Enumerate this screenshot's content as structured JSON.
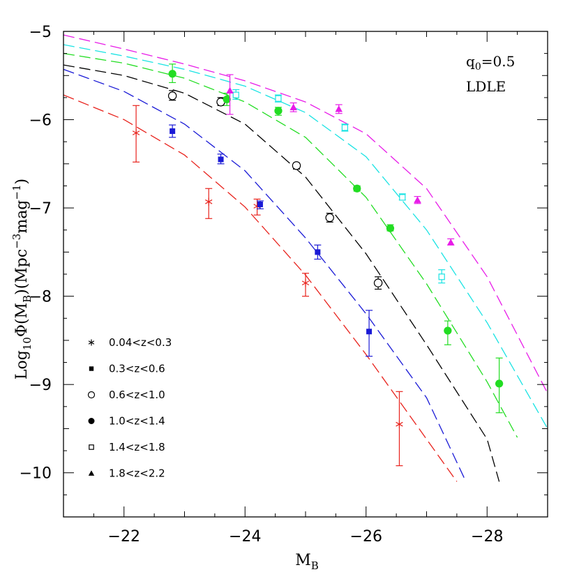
{
  "chart_data": {
    "type": "scatter",
    "title": "",
    "xlabel": {
      "main": "M",
      "sub": "B"
    },
    "ylabel": {
      "pre": "Log",
      "pre_sub": "10",
      "mid": "Φ(M",
      "mid_sub": "B",
      "post": ")(Mpc",
      "exp1": "−3",
      "post2": "mag",
      "exp2": "−1",
      "end": ")"
    },
    "xlim": [
      -21,
      -29
    ],
    "ylim": [
      -10.5,
      -5
    ],
    "x_ticks": [
      -22,
      -24,
      -26,
      -28
    ],
    "x_tick_labels": [
      "−22",
      "−24",
      "−26",
      "−28"
    ],
    "y_ticks": [
      -10,
      -9,
      -8,
      -7,
      -6,
      -5
    ],
    "y_tick_labels": [
      "−10",
      "−9",
      "−8",
      "−7",
      "−6",
      "−5"
    ],
    "grid": false,
    "legend_position": "bottom-left",
    "annotations": [
      {
        "main": "q",
        "sub": "0",
        "rest": "=0.5"
      },
      {
        "main": "LDLE"
      }
    ],
    "series": [
      {
        "name": "0.04<z<0.3",
        "marker": "asterisk",
        "color": "#e8221c",
        "points": [
          {
            "x": -22.2,
            "y": -6.15,
            "lo": -6.48,
            "hi": -5.84
          },
          {
            "x": -23.4,
            "y": -6.93,
            "lo": -7.12,
            "hi": -6.78
          },
          {
            "x": -24.2,
            "y": -6.98,
            "lo": -7.08,
            "hi": -6.9
          },
          {
            "x": -25.0,
            "y": -7.85,
            "lo": -8.0,
            "hi": -7.74
          },
          {
            "x": -26.55,
            "y": -9.45,
            "lo": -9.92,
            "hi": -9.08
          }
        ],
        "curve": [
          [
            -21,
            -5.72
          ],
          [
            -22,
            -6.0
          ],
          [
            -23,
            -6.4
          ],
          [
            -24,
            -6.99
          ],
          [
            -25,
            -7.76
          ],
          [
            -26,
            -8.66
          ],
          [
            -27,
            -9.62
          ],
          [
            -27.5,
            -10.1
          ]
        ]
      },
      {
        "name": "0.3<z<0.6",
        "marker": "square-filled",
        "color": "#1a1ad6",
        "points": [
          {
            "x": -22.8,
            "y": -6.13,
            "lo": -6.2,
            "hi": -6.06
          },
          {
            "x": -23.6,
            "y": -6.45,
            "lo": -6.5,
            "hi": -6.39
          },
          {
            "x": -24.25,
            "y": -6.96,
            "lo": -7.01,
            "hi": -6.92
          },
          {
            "x": -25.2,
            "y": -7.5,
            "lo": -7.58,
            "hi": -7.42
          },
          {
            "x": -26.05,
            "y": -8.4,
            "lo": -8.68,
            "hi": -8.16
          }
        ],
        "curve": [
          [
            -21,
            -5.43
          ],
          [
            -22,
            -5.68
          ],
          [
            -23,
            -6.05
          ],
          [
            -24,
            -6.58
          ],
          [
            -25,
            -7.34
          ],
          [
            -26,
            -8.2
          ],
          [
            -27,
            -9.15
          ],
          [
            -27.65,
            -10.1
          ]
        ]
      },
      {
        "name": "0.6<z<1.0",
        "marker": "circle-open",
        "color": "#000000",
        "points": [
          {
            "x": -22.8,
            "y": -5.73,
            "lo": -5.78,
            "hi": -5.67
          },
          {
            "x": -23.6,
            "y": -5.8,
            "lo": -5.84,
            "hi": -5.75
          },
          {
            "x": -24.85,
            "y": -6.52,
            "lo": -6.56,
            "hi": -6.49
          },
          {
            "x": -25.4,
            "y": -7.11,
            "lo": -7.16,
            "hi": -7.06
          },
          {
            "x": -26.2,
            "y": -7.85,
            "lo": -7.92,
            "hi": -7.78
          }
        ],
        "curve": [
          [
            -21,
            -5.38
          ],
          [
            -22,
            -5.5
          ],
          [
            -23,
            -5.7
          ],
          [
            -24,
            -6.05
          ],
          [
            -25,
            -6.65
          ],
          [
            -26,
            -7.52
          ],
          [
            -27,
            -8.55
          ],
          [
            -28,
            -9.62
          ],
          [
            -28.2,
            -10.1
          ]
        ]
      },
      {
        "name": "1.0<z<1.4",
        "marker": "circle-filled",
        "color": "#22dd22",
        "points": [
          {
            "x": -22.8,
            "y": -5.48,
            "lo": -5.58,
            "hi": -5.37
          },
          {
            "x": -23.7,
            "y": -5.77,
            "lo": -5.84,
            "hi": -5.7
          },
          {
            "x": -24.55,
            "y": -5.9,
            "lo": -5.95,
            "hi": -5.86
          },
          {
            "x": -25.85,
            "y": -6.78,
            "lo": -6.81,
            "hi": -6.75
          },
          {
            "x": -26.4,
            "y": -7.23,
            "lo": -7.26,
            "hi": -7.19
          },
          {
            "x": -27.35,
            "y": -8.39,
            "lo": -8.55,
            "hi": -8.28
          },
          {
            "x": -28.2,
            "y": -8.99,
            "lo": -9.32,
            "hi": -8.7
          }
        ],
        "curve": [
          [
            -21,
            -5.25
          ],
          [
            -22,
            -5.36
          ],
          [
            -23,
            -5.53
          ],
          [
            -24,
            -5.8
          ],
          [
            -25,
            -6.2
          ],
          [
            -26,
            -6.88
          ],
          [
            -27,
            -7.86
          ],
          [
            -28,
            -8.97
          ],
          [
            -28.5,
            -9.6
          ]
        ]
      },
      {
        "name": "1.4<z<1.8",
        "marker": "square-open",
        "color": "#19e3e3",
        "points": [
          {
            "x": -23.85,
            "y": -5.72,
            "lo": -5.77,
            "hi": -5.66
          },
          {
            "x": -24.55,
            "y": -5.76,
            "lo": -5.8,
            "hi": -5.72
          },
          {
            "x": -25.65,
            "y": -6.09,
            "lo": -6.13,
            "hi": -6.05
          },
          {
            "x": -26.6,
            "y": -6.88,
            "lo": -6.91,
            "hi": -6.84
          },
          {
            "x": -27.25,
            "y": -7.78,
            "lo": -7.85,
            "hi": -7.7
          }
        ],
        "curve": [
          [
            -21,
            -5.15
          ],
          [
            -22,
            -5.28
          ],
          [
            -23,
            -5.43
          ],
          [
            -24,
            -5.62
          ],
          [
            -25,
            -5.92
          ],
          [
            -26,
            -6.42
          ],
          [
            -27,
            -7.25
          ],
          [
            -28,
            -8.3
          ],
          [
            -29,
            -9.5
          ]
        ]
      },
      {
        "name": "1.8<z<2.2",
        "marker": "triangle-filled",
        "color": "#e81ce8",
        "points": [
          {
            "x": -23.75,
            "y": -5.67,
            "lo": -5.94,
            "hi": -5.49
          },
          {
            "x": -24.8,
            "y": -5.86,
            "lo": -5.91,
            "hi": -5.81
          },
          {
            "x": -25.55,
            "y": -5.88,
            "lo": -5.93,
            "hi": -5.83
          },
          {
            "x": -26.85,
            "y": -6.91,
            "lo": -6.95,
            "hi": -6.87
          },
          {
            "x": -27.4,
            "y": -7.39,
            "lo": -7.42,
            "hi": -7.35
          }
        ],
        "curve": [
          [
            -21,
            -5.04
          ],
          [
            -22,
            -5.2
          ],
          [
            -23,
            -5.37
          ],
          [
            -24,
            -5.56
          ],
          [
            -25,
            -5.8
          ],
          [
            -26,
            -6.16
          ],
          [
            -27,
            -6.78
          ],
          [
            -28,
            -7.78
          ],
          [
            -29,
            -9.1
          ]
        ]
      }
    ]
  }
}
